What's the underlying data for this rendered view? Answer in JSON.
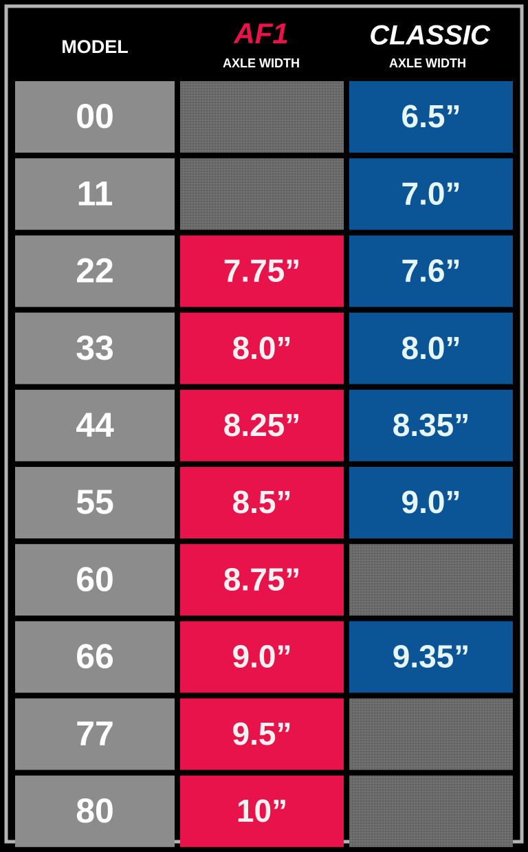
{
  "header": {
    "model": "MODEL",
    "af1": {
      "title": "AF1",
      "subtitle": "AXLE WIDTH"
    },
    "classic": {
      "title": "CLASSIC",
      "subtitle": "AXLE WIDTH"
    }
  },
  "table": {
    "rows": [
      [
        "00",
        null,
        "6.5”"
      ],
      [
        "11",
        null,
        "7.0”"
      ],
      [
        "22",
        "7.75”",
        "7.6”"
      ],
      [
        "33",
        "8.0”",
        "8.0”"
      ],
      [
        "44",
        "8.25”",
        "8.35”"
      ],
      [
        "55",
        "8.5”",
        "9.0”"
      ],
      [
        "60",
        "8.75”",
        null
      ],
      [
        "66",
        "9.0”",
        "9.35”"
      ],
      [
        "77",
        "9.5”",
        null
      ],
      [
        "80",
        "10”",
        null
      ]
    ]
  }
}
